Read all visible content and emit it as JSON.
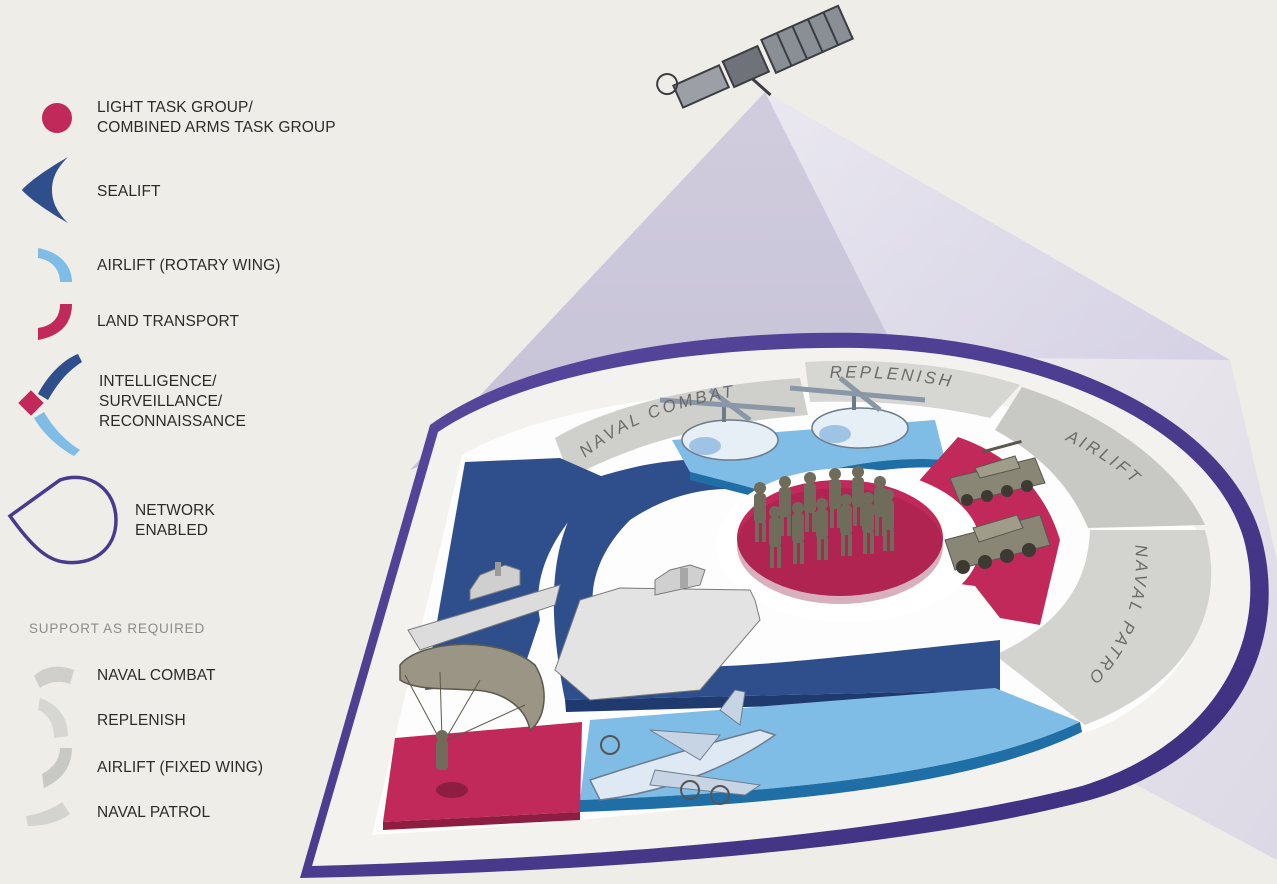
{
  "legend": {
    "light_task_group": "LIGHT TASK GROUP/\nCOMBINED ARMS TASK GROUP",
    "sealift": "SEALIFT",
    "airlift_rotary": "AIRLIFT (ROTARY WING)",
    "land_transport": "LAND TRANSPORT",
    "isr": "INTELLIGENCE/\nSURVEILLANCE/\nRECONNAISSANCE",
    "network_enabled": "NETWORK\nENABLED"
  },
  "support": {
    "title": "SUPPORT AS REQUIRED",
    "naval_combat": "NAVAL COMBAT",
    "replenish": "REPLENISH",
    "airlift_fixed": "AIRLIFT (FIXED WING)",
    "naval_patrol": "NAVAL PATROL"
  },
  "ring_labels": {
    "naval_combat": "NAVAL COMBAT",
    "replenish": "REPLENISH",
    "airlift": "AIRLIFT",
    "naval_patrol": "NAVAL PATROL"
  },
  "colors": {
    "background": "#efede7",
    "crimson": "#c0295a",
    "sealift_blue": "#2f4f8c",
    "sky_blue": "#7fbde6",
    "network_purple": "#4a3a8f",
    "support_grey": "#cfcfcb"
  },
  "icons": {
    "satellite": "satellite-icon",
    "helicopter": "helicopter-icon",
    "soldiers": "soldiers-icon",
    "armored_vehicle": "armored-vehicle-icon",
    "ship": "ship-icon",
    "aircraft": "aircraft-icon",
    "parachute": "parachute-icon"
  }
}
